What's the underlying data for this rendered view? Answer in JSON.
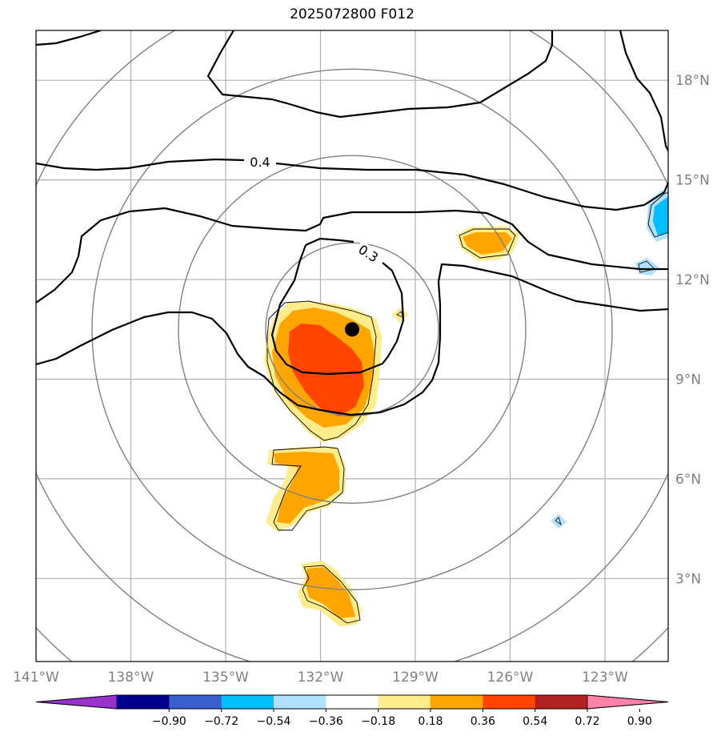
{
  "title": "2025072800 F012",
  "map": {
    "lon_range": [
      -141,
      -121
    ],
    "lat_range": [
      0.5,
      19.5
    ],
    "lon_ticks": [
      {
        "value": -141,
        "label": "141°W"
      },
      {
        "value": -138,
        "label": "138°W"
      },
      {
        "value": -135,
        "label": "135°W"
      },
      {
        "value": -132,
        "label": "132°W"
      },
      {
        "value": -129,
        "label": "129°W"
      },
      {
        "value": -126,
        "label": "126°W"
      },
      {
        "value": -123,
        "label": "123°W"
      }
    ],
    "lat_ticks": [
      {
        "value": 3,
        "label": "3°N"
      },
      {
        "value": 6,
        "label": "6°N"
      },
      {
        "value": 9,
        "label": "9°N"
      },
      {
        "value": 12,
        "label": "12°N"
      },
      {
        "value": 15,
        "label": "15°N"
      },
      {
        "value": 18,
        "label": "18°N"
      }
    ],
    "gridlines": true,
    "center": {
      "lon": -131,
      "lat": 10.5
    },
    "range_ring_count": 5,
    "contour_labels": [
      "0.4",
      "0.3"
    ]
  },
  "colorbar": {
    "ticks": [
      "−0.90",
      "−0.72",
      "−0.54",
      "−0.36",
      "−0.18",
      "0.18",
      "0.36",
      "0.54",
      "0.72",
      "0.90"
    ],
    "colors": [
      "#9932cc",
      "#00008b",
      "#3a5fcd",
      "#00bfff",
      "#b0e2ff",
      "#ffffff",
      "#ffec8b",
      "#ffa500",
      "#ff4500",
      "#b22222",
      "#ff82ab"
    ],
    "extend": "both"
  }
}
